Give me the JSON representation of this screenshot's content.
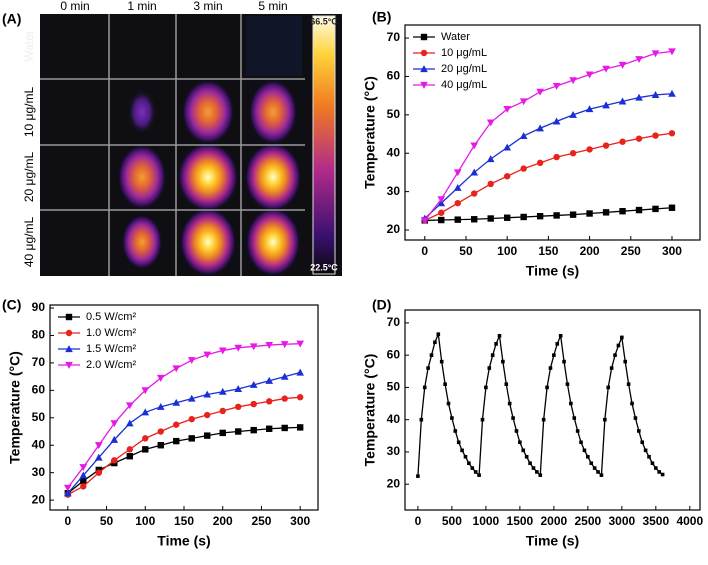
{
  "thermal_image": {
    "panel_label": "(A)",
    "columns": [
      "0 min",
      "1 min",
      "3 min",
      "5 min"
    ],
    "rows": [
      "Water",
      "10 μg/mL",
      "20 μg/mL",
      "40 μg/mL"
    ],
    "colorbar_max": "66.5°C",
    "colorbar_min": "22.5°C"
  },
  "chart_data": [
    {
      "type": "line",
      "panel_label": "(B)",
      "x_label": "Time (s)",
      "y_label": "Temperature (°C)",
      "x": [
        0,
        20,
        40,
        60,
        80,
        100,
        120,
        140,
        160,
        180,
        200,
        220,
        240,
        260,
        280,
        300
      ],
      "xlim": [
        -24,
        334
      ],
      "xticks": [
        0,
        50,
        100,
        150,
        200,
        250,
        300
      ],
      "ylim": [
        17.4,
        73.4
      ],
      "yticks": [
        20,
        30,
        40,
        50,
        60,
        70
      ],
      "legend": "upper left",
      "series": [
        {
          "name": "Water",
          "color": "#000000",
          "marker": "square",
          "values": [
            22.5,
            22.6,
            22.7,
            22.8,
            23,
            23.2,
            23.4,
            23.6,
            23.8,
            24,
            24.3,
            24.6,
            24.9,
            25.2,
            25.5,
            25.8
          ]
        },
        {
          "name": "10 μg/mL",
          "color": "#e8221c",
          "marker": "circle",
          "values": [
            22.5,
            24.5,
            27,
            29.5,
            32,
            34,
            36,
            37.5,
            39,
            40,
            41,
            42,
            43,
            43.8,
            44.6,
            45.2
          ]
        },
        {
          "name": "20 μg/mL",
          "color": "#1a2fd6",
          "marker": "triangle-up",
          "values": [
            23,
            27,
            31,
            35,
            38.5,
            41.5,
            44.5,
            46.5,
            48.3,
            50,
            51.5,
            52.5,
            53.5,
            54.5,
            55.2,
            55.5
          ]
        },
        {
          "name": "40 μg/mL",
          "color": "#e619e6",
          "marker": "triangle-down",
          "values": [
            22.5,
            28,
            35,
            42,
            48,
            51.5,
            53.5,
            56,
            57.5,
            59,
            60.5,
            62,
            63,
            64.5,
            66,
            66.5
          ]
        }
      ]
    },
    {
      "type": "line",
      "panel_label": "(C)",
      "x_label": "Time (s)",
      "y_label": "Temperature (°C)",
      "x": [
        0,
        20,
        40,
        60,
        80,
        100,
        120,
        140,
        160,
        180,
        200,
        220,
        240,
        260,
        280,
        300
      ],
      "xlim": [
        -23,
        323
      ],
      "xticks": [
        0,
        50,
        100,
        150,
        200,
        250,
        300
      ],
      "ylim": [
        16.4,
        91.1
      ],
      "yticks": [
        20,
        30,
        40,
        50,
        60,
        70,
        80,
        90
      ],
      "legend": "upper left",
      "series": [
        {
          "name": "0.5 W/cm²",
          "color": "#000000",
          "marker": "square",
          "values": [
            22.5,
            27,
            31,
            33.5,
            36,
            38.5,
            40,
            41.5,
            42.5,
            43.5,
            44.5,
            45,
            45.5,
            46,
            46.3,
            46.5
          ]
        },
        {
          "name": "1.0 W/cm²",
          "color": "#e8221c",
          "marker": "circle",
          "values": [
            22,
            25,
            30,
            34.5,
            38.5,
            42.5,
            45,
            47.5,
            49.5,
            51,
            52.5,
            54,
            55,
            56,
            57,
            57.5
          ]
        },
        {
          "name": "1.5 W/cm²",
          "color": "#1a2fd6",
          "marker": "triangle-up",
          "values": [
            22.5,
            29,
            35.5,
            42,
            48,
            52,
            54,
            55.5,
            57,
            58.5,
            59.5,
            60.5,
            62,
            63.5,
            65,
            66.5
          ]
        },
        {
          "name": "2.0 W/cm²",
          "color": "#e619e6",
          "marker": "triangle-down",
          "values": [
            24.5,
            32,
            40,
            48,
            54.5,
            60,
            64.5,
            68,
            71,
            73,
            74.5,
            75.5,
            76,
            76.5,
            76.8,
            77
          ]
        }
      ]
    },
    {
      "type": "line",
      "panel_label": "(D)",
      "x_label": "Time (s)",
      "y_label": "Temperature (°C)",
      "x": [
        0,
        50,
        100,
        150,
        200,
        250,
        300,
        350,
        400,
        450,
        500,
        550,
        600,
        650,
        700,
        750,
        800,
        850,
        900,
        950,
        1000,
        1050,
        1100,
        1150,
        1200,
        1250,
        1300,
        1350,
        1400,
        1450,
        1500,
        1550,
        1600,
        1650,
        1700,
        1750,
        1800,
        1850,
        1900,
        1950,
        2000,
        2050,
        2100,
        2150,
        2200,
        2250,
        2300,
        2350,
        2400,
        2450,
        2500,
        2550,
        2600,
        2650,
        2700,
        2750,
        2800,
        2850,
        2900,
        2950,
        3000,
        3050,
        3100,
        3150,
        3200,
        3250,
        3300,
        3350,
        3400,
        3450,
        3500,
        3550,
        3600
      ],
      "xlim": [
        -190,
        4150
      ],
      "xticks": [
        0,
        500,
        1000,
        1500,
        2000,
        2500,
        3000,
        3500,
        4000
      ],
      "ylim": [
        12,
        74
      ],
      "yticks": [
        20,
        30,
        40,
        50,
        60,
        70
      ],
      "series": [
        {
          "color": "#000000",
          "marker": "square",
          "values": [
            22.5,
            40,
            50,
            56,
            60,
            64,
            66.5,
            58,
            51,
            45,
            40.5,
            36.5,
            33,
            30.5,
            28.5,
            26.5,
            25,
            23.8,
            22.8,
            40,
            50,
            56,
            60,
            63.5,
            66,
            58,
            51,
            45,
            40.5,
            36.5,
            33,
            30.5,
            28.5,
            26.5,
            25,
            23.8,
            22.8,
            40,
            50,
            56,
            60,
            63.5,
            66,
            58,
            51,
            45,
            40.5,
            36.5,
            33,
            30.5,
            28.5,
            26.5,
            25,
            23.8,
            22.8,
            40,
            50,
            56,
            60,
            63,
            65.5,
            58,
            51,
            45,
            40.5,
            36.5,
            33,
            30.5,
            28.5,
            26.5,
            25,
            23.8,
            23
          ]
        }
      ]
    }
  ]
}
